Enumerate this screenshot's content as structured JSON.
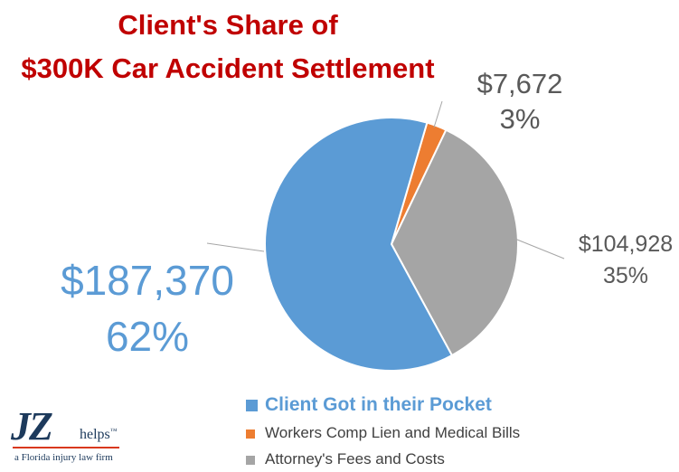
{
  "chart_data": {
    "type": "pie",
    "title": [
      "Client's Share of",
      "$300K Car Accident Settlement"
    ],
    "slices": [
      {
        "label": "Client Got in their Pocket",
        "value": 187370,
        "value_label": "$187,370",
        "percent_label": "62%",
        "color": "#5b9bd5"
      },
      {
        "label": "Workers Comp Lien and Medical Bills",
        "value": 7672,
        "value_label": "$7,672",
        "percent_label": "3%",
        "color": "#ed7d31"
      },
      {
        "label": "Attorney's Fees and Costs",
        "value": 104928,
        "value_label": "$104,928",
        "percent_label": "35%",
        "color": "#a5a5a5"
      }
    ],
    "legend_position": "bottom",
    "colors": {
      "title": "#c00000",
      "label_text": "#595959",
      "client_label": "#5b9bd5"
    }
  },
  "logo": {
    "mark": "JZ",
    "word": "helps",
    "tm": "™",
    "tagline": "a Florida injury law firm"
  }
}
